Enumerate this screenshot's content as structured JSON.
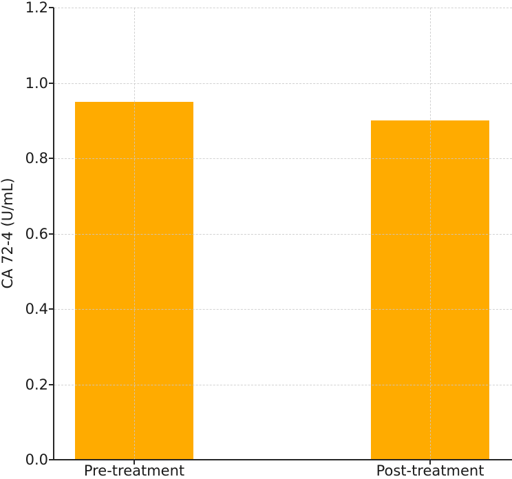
{
  "chart_data": {
    "type": "bar",
    "categories": [
      "Pre-treatment",
      "Post-treatment"
    ],
    "values": [
      0.95,
      0.9
    ],
    "title": "",
    "xlabel": "",
    "ylabel": "CA 72-4 (U/mL)",
    "ylim": [
      0.0,
      1.2
    ],
    "yticks": [
      0.0,
      0.2,
      0.4,
      0.6,
      0.8,
      1.0,
      1.2
    ],
    "ytick_labels": [
      "0.0",
      "0.2",
      "0.4",
      "0.6",
      "0.8",
      "1.0",
      "1.2"
    ],
    "grid": "dashed, drawn above bars, horizontal and vertical at bar centers",
    "legend": "none",
    "spines": "left and bottom only"
  },
  "colors": {
    "bar": "#FFAB00",
    "grid": "#c9c9c9",
    "axis": "#262626",
    "text": "#1a1a1a",
    "background": "#ffffff"
  }
}
